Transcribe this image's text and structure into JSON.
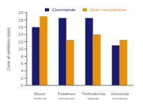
{
  "chart_data": {
    "type": "bar",
    "categories": [
      "Mucor\nindicus",
      "Fusarium\ndimerum",
      "Trichoderma\nreecei",
      "Humicola\ninsolens"
    ],
    "series": [
      {
        "name": "Clotrimazole",
        "color": "#1a1a6e",
        "values": [
          16,
          18.5,
          18.5,
          11
        ]
      },
      {
        "name": "Silver nanoparticles",
        "color": "#e8900a",
        "values": [
          19,
          12.5,
          14,
          12.5
        ]
      }
    ],
    "ylabel": "Zone of inhibition (mm)",
    "ylim": [
      0,
      20
    ],
    "yticks": [
      0,
      2,
      4,
      6,
      8,
      10,
      12,
      14,
      16,
      18,
      20
    ],
    "legend": "upper right",
    "grid": false
  }
}
